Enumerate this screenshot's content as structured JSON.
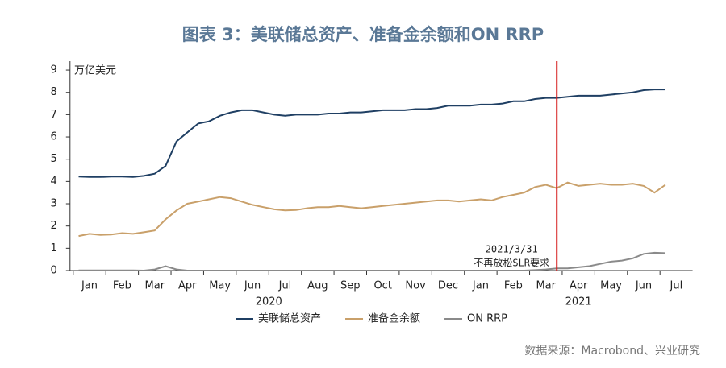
{
  "chart_data": {
    "type": "line",
    "title": "图表 3：美联储总资产、准备金余额和ON RRP",
    "y_label": "万亿美元",
    "source": "数据来源：Macrobond、兴业研究",
    "categories": [
      null,
      "Jan",
      null,
      null,
      "Feb",
      null,
      null,
      "Mar",
      null,
      null,
      "Apr",
      null,
      null,
      "May",
      null,
      null,
      "Jun",
      null,
      null,
      "Jul",
      null,
      null,
      "Aug",
      null,
      null,
      "Sep",
      null,
      null,
      "Oct",
      null,
      null,
      "Nov",
      null,
      null,
      "Dec",
      null,
      null,
      "Jan",
      null,
      null,
      "Feb",
      null,
      null,
      "Mar",
      null,
      null,
      "Apr",
      null,
      null,
      "May",
      null,
      null,
      "Jun",
      null,
      null,
      "Jul",
      null
    ],
    "year_labels": [
      "2020",
      "2021"
    ],
    "series": [
      {
        "name": "美联储总资产",
        "color": "#1f3f63",
        "values": [
          4.22,
          4.2,
          4.2,
          4.22,
          4.22,
          4.2,
          4.25,
          4.35,
          4.7,
          5.8,
          6.2,
          6.6,
          6.7,
          6.95,
          7.1,
          7.2,
          7.2,
          7.1,
          7.0,
          6.95,
          7.0,
          7.0,
          7.0,
          7.05,
          7.05,
          7.1,
          7.1,
          7.15,
          7.2,
          7.2,
          7.2,
          7.25,
          7.25,
          7.3,
          7.4,
          7.4,
          7.4,
          7.45,
          7.45,
          7.5,
          7.6,
          7.6,
          7.7,
          7.75,
          7.75,
          7.8,
          7.85,
          7.85,
          7.85,
          7.9,
          7.95,
          8.0,
          8.1,
          8.13,
          8.13,
          null,
          null
        ]
      },
      {
        "name": "准备金余额",
        "color": "#c9a06a",
        "values": [
          1.55,
          1.65,
          1.6,
          1.62,
          1.68,
          1.65,
          1.72,
          1.8,
          2.3,
          2.7,
          3.0,
          3.1,
          3.2,
          3.3,
          3.25,
          3.1,
          2.95,
          2.85,
          2.75,
          2.7,
          2.72,
          2.8,
          2.85,
          2.85,
          2.9,
          2.85,
          2.8,
          2.85,
          2.9,
          2.95,
          3.0,
          3.05,
          3.1,
          3.15,
          3.15,
          3.1,
          3.15,
          3.2,
          3.15,
          3.3,
          3.4,
          3.5,
          3.75,
          3.85,
          3.7,
          3.95,
          3.8,
          3.85,
          3.9,
          3.85,
          3.85,
          3.9,
          3.8,
          3.5,
          3.85,
          null,
          null
        ]
      },
      {
        "name": "ON RRP",
        "color": "#8a8a8a",
        "values": [
          0.01,
          0.01,
          0.01,
          0.01,
          0.01,
          0.01,
          0.0,
          0.05,
          0.2,
          0.05,
          0.0,
          0.0,
          0.0,
          0.0,
          0.0,
          0.0,
          0.0,
          0.0,
          0.0,
          0.0,
          0.0,
          0.0,
          0.0,
          0.0,
          0.0,
          0.0,
          0.0,
          0.0,
          0.0,
          0.0,
          0.0,
          0.0,
          0.0,
          0.0,
          0.0,
          0.0,
          0.0,
          0.0,
          0.0,
          0.0,
          0.0,
          0.0,
          0.02,
          0.05,
          0.1,
          0.1,
          0.15,
          0.2,
          0.3,
          0.4,
          0.45,
          0.55,
          0.75,
          0.8,
          0.78,
          null,
          null
        ]
      }
    ],
    "annotations": [
      "2021/3/31",
      "不再放松SLR要求"
    ],
    "vline_color": "#d62020",
    "ylim": [
      0,
      9.4
    ],
    "yticks": [
      0,
      1,
      2,
      3,
      4,
      5,
      6,
      7,
      8,
      9
    ],
    "legend": "bottom"
  }
}
